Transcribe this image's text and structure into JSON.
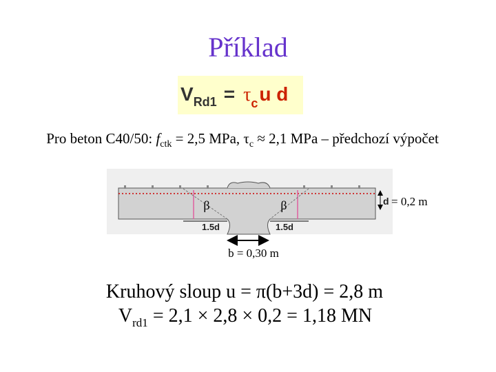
{
  "title": "Příklad",
  "formula": {
    "v": "V",
    "v_sub": "Rd1",
    "eq": "=",
    "tau": "τ",
    "tau_sub": "c",
    "ud": "u d"
  },
  "given": {
    "prefix": "Pro beton C40/50: ",
    "f": "f",
    "f_sub": "ctk",
    "mid": " = 2,5 MPa, τ",
    "tau_sub": "c",
    "suffix": " ≈ 2,1 MPa – předchozí výpočet"
  },
  "diagram": {
    "beta_left": "β",
    "beta_right": "β",
    "span_left": "1.5d",
    "span_right": "1.5d",
    "depth_symbol": "d",
    "depth_value": "= 0,2 m",
    "column_width": "b = 0,30 m"
  },
  "result": {
    "perimeter": "Kruhový sloup u = π(b+3d) = 2,8 m",
    "v": "V",
    "v_sub": "rd1",
    "shear": " = 2,1 × 2,8 × 0,2 = 1,18 MN"
  }
}
